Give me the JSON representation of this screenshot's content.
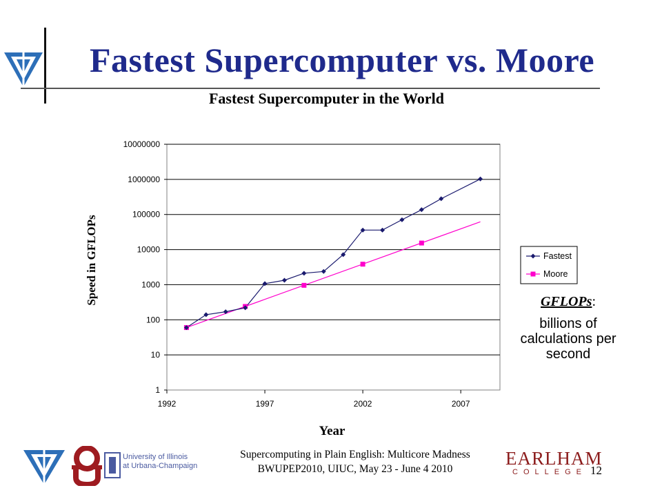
{
  "slide": {
    "title": "Fastest Supercomputer vs. Moore",
    "gflops_term": "GFLOPs",
    "gflops_colon": ":",
    "gflops_desc": "billions of calculations per second",
    "footer_line1": "Supercomputing in Plain English: Multicore Madness",
    "footer_line2": "BWUPEP2010, UIUC, May 23 - June 4 2010",
    "page_number": "12",
    "logos": {
      "ui_line1": "University of Illinois",
      "ui_line2": "at Urbana-Champaign",
      "earlham_main": "EARLHAM",
      "earlham_sub": "COLLEGE"
    },
    "colors": {
      "title": "#1f2a8c",
      "fastest": "#1a1a6e",
      "moore": "#ff00cc",
      "earlham": "#8c1c1c"
    }
  },
  "chart_data": {
    "type": "line",
    "title": "Fastest Supercomputer in the World",
    "xlabel": "Year",
    "ylabel": "Speed in GFLOPs",
    "xlim": [
      1992,
      2009
    ],
    "ylim": [
      1,
      10000000
    ],
    "yscale": "log",
    "x_ticks": [
      "1992",
      "1997",
      "2002",
      "2007"
    ],
    "y_ticks": [
      "1",
      "10",
      "100",
      "1000",
      "10000",
      "100000",
      "1000000",
      "10000000"
    ],
    "grid": "horizontal",
    "legend_position": "right",
    "series": [
      {
        "name": "Fastest",
        "color": "#1a1a6e",
        "marker": "diamond",
        "x": [
          1993,
          1994,
          1995,
          1996,
          1997,
          1998,
          1999,
          2000,
          2001,
          2002,
          2003,
          2004,
          2005,
          2006,
          2008
        ],
        "y": [
          60,
          140,
          170,
          220,
          1070,
          1340,
          2120,
          2380,
          7200,
          35900,
          35900,
          70700,
          136800,
          280600,
          1026000
        ]
      },
      {
        "name": "Moore",
        "color": "#ff00cc",
        "marker": "square",
        "line_x": [
          1993,
          2008
        ],
        "line_y": [
          60,
          62000
        ],
        "x": [
          1993,
          1996,
          1999,
          2002,
          2005
        ],
        "y": [
          60,
          240,
          960,
          3840,
          15360
        ]
      }
    ]
  }
}
